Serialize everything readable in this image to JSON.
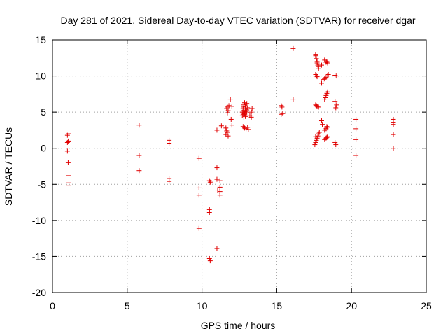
{
  "chart_data": {
    "type": "scatter",
    "title": "Day 281 of 2021, Sidereal Day-to-day VTEC variation (SDTVAR) for receiver dgar",
    "xlabel": "GPS time / hours",
    "ylabel": "SDTVAR / TECUs",
    "xlim": [
      0,
      25
    ],
    "ylim": [
      -20,
      15
    ],
    "xticks": [
      0,
      5,
      10,
      15,
      20,
      25
    ],
    "yticks": [
      -20,
      -15,
      -10,
      -5,
      0,
      5,
      10,
      15
    ],
    "xtick_labels": [
      "0",
      "5",
      "10",
      "15",
      "20",
      "25"
    ],
    "ytick_labels": [
      "-20",
      "-15",
      "-10",
      "-5",
      "0",
      "5",
      "10",
      "15"
    ],
    "grid": true,
    "marker": "+",
    "color": "#e00000",
    "series": [
      {
        "name": "SDTVAR",
        "points": [
          [
            1.0,
            1.8
          ],
          [
            1.1,
            2.0
          ],
          [
            1.05,
            1.0
          ],
          [
            1.0,
            0.8
          ],
          [
            1.1,
            0.9
          ],
          [
            1.0,
            -0.4
          ],
          [
            1.05,
            -2.0
          ],
          [
            1.1,
            -3.8
          ],
          [
            1.1,
            -4.8
          ],
          [
            1.1,
            -5.2
          ],
          [
            5.8,
            3.2
          ],
          [
            5.8,
            -1.0
          ],
          [
            5.8,
            -3.1
          ],
          [
            7.8,
            1.1
          ],
          [
            7.8,
            0.7
          ],
          [
            7.8,
            -4.2
          ],
          [
            7.8,
            -4.6
          ],
          [
            9.8,
            -1.4
          ],
          [
            9.8,
            -5.5
          ],
          [
            9.8,
            -6.5
          ],
          [
            9.8,
            -11.1
          ],
          [
            10.5,
            -4.5
          ],
          [
            10.55,
            -4.7
          ],
          [
            10.5,
            -8.5
          ],
          [
            10.5,
            -8.9
          ],
          [
            10.5,
            -15.3
          ],
          [
            10.55,
            -15.6
          ],
          [
            11.0,
            -2.7
          ],
          [
            11.0,
            -4.3
          ],
          [
            11.05,
            -5.8
          ],
          [
            11.0,
            -13.9
          ],
          [
            11.0,
            2.5
          ],
          [
            11.2,
            -4.5
          ],
          [
            11.2,
            -5.4
          ],
          [
            11.2,
            -6.0
          ],
          [
            11.2,
            -6.5
          ],
          [
            11.3,
            3.1
          ],
          [
            11.6,
            1.9
          ],
          [
            11.65,
            2.4
          ],
          [
            11.7,
            2.2
          ],
          [
            11.6,
            2.8
          ],
          [
            11.75,
            1.7
          ],
          [
            11.7,
            4.9
          ],
          [
            11.65,
            5.5
          ],
          [
            11.7,
            5.7
          ],
          [
            11.75,
            5.2
          ],
          [
            11.8,
            5.9
          ],
          [
            11.9,
            6.8
          ],
          [
            11.95,
            4.0
          ],
          [
            12.0,
            3.2
          ],
          [
            12.0,
            5.8
          ],
          [
            12.7,
            5.0
          ],
          [
            12.75,
            5.5
          ],
          [
            12.8,
            6.0
          ],
          [
            12.85,
            6.3
          ],
          [
            12.7,
            4.5
          ],
          [
            12.75,
            4.7
          ],
          [
            12.8,
            5.2
          ],
          [
            12.9,
            5.8
          ],
          [
            12.95,
            6.1
          ],
          [
            13.0,
            5.3
          ],
          [
            12.8,
            4.2
          ],
          [
            12.85,
            4.8
          ],
          [
            12.9,
            4.4
          ],
          [
            13.0,
            4.9
          ],
          [
            13.05,
            5.6
          ],
          [
            12.75,
            3.0
          ],
          [
            12.85,
            2.8
          ],
          [
            12.95,
            2.7
          ],
          [
            13.05,
            2.9
          ],
          [
            13.1,
            2.6
          ],
          [
            13.0,
            6.2
          ],
          [
            12.8,
            5.7
          ],
          [
            12.9,
            5.1
          ],
          [
            13.2,
            4.5
          ],
          [
            13.3,
            5.0
          ],
          [
            13.35,
            5.5
          ],
          [
            13.3,
            4.3
          ],
          [
            15.3,
            5.9
          ],
          [
            15.35,
            5.7
          ],
          [
            15.3,
            4.7
          ],
          [
            15.4,
            4.8
          ],
          [
            16.1,
            13.8
          ],
          [
            16.1,
            6.8
          ],
          [
            17.6,
            13.0
          ],
          [
            17.6,
            12.8
          ],
          [
            17.65,
            12.4
          ],
          [
            17.7,
            12.0
          ],
          [
            17.7,
            11.8
          ],
          [
            17.75,
            11.5
          ],
          [
            17.8,
            11.3
          ],
          [
            17.8,
            11.0
          ],
          [
            17.6,
            10.2
          ],
          [
            17.65,
            10.0
          ],
          [
            17.7,
            9.9
          ],
          [
            17.6,
            6.0
          ],
          [
            17.65,
            5.9
          ],
          [
            17.7,
            5.8
          ],
          [
            17.8,
            5.7
          ],
          [
            17.55,
            0.5
          ],
          [
            17.6,
            0.8
          ],
          [
            17.65,
            1.1
          ],
          [
            17.7,
            1.4
          ],
          [
            17.75,
            1.7
          ],
          [
            17.8,
            2.0
          ],
          [
            17.85,
            2.2
          ],
          [
            17.6,
            1.6
          ],
          [
            18.0,
            11.5
          ],
          [
            18.1,
            9.5
          ],
          [
            18.0,
            9.0
          ],
          [
            18.0,
            3.8
          ],
          [
            18.05,
            3.3
          ],
          [
            18.2,
            12.2
          ],
          [
            18.3,
            11.9
          ],
          [
            18.35,
            12.0
          ],
          [
            18.4,
            11.8
          ],
          [
            18.2,
            9.6
          ],
          [
            18.3,
            9.8
          ],
          [
            18.4,
            10.0
          ],
          [
            18.45,
            10.2
          ],
          [
            18.2,
            6.8
          ],
          [
            18.25,
            7.0
          ],
          [
            18.3,
            7.3
          ],
          [
            18.35,
            7.6
          ],
          [
            18.4,
            7.8
          ],
          [
            18.2,
            2.5
          ],
          [
            18.3,
            2.7
          ],
          [
            18.35,
            3.0
          ],
          [
            18.4,
            2.9
          ],
          [
            18.2,
            1.2
          ],
          [
            18.3,
            1.4
          ],
          [
            18.35,
            1.5
          ],
          [
            18.4,
            1.6
          ],
          [
            18.9,
            10.1
          ],
          [
            19.0,
            10.0
          ],
          [
            18.9,
            6.5
          ],
          [
            19.0,
            6.0
          ],
          [
            18.95,
            5.6
          ],
          [
            18.9,
            0.8
          ],
          [
            18.95,
            0.5
          ],
          [
            20.3,
            4.0
          ],
          [
            20.3,
            2.7
          ],
          [
            20.3,
            1.2
          ],
          [
            20.3,
            -1.0
          ],
          [
            22.8,
            4.0
          ],
          [
            22.8,
            3.6
          ],
          [
            22.8,
            3.3
          ],
          [
            22.8,
            1.9
          ],
          [
            22.8,
            0.0
          ]
        ]
      }
    ]
  }
}
